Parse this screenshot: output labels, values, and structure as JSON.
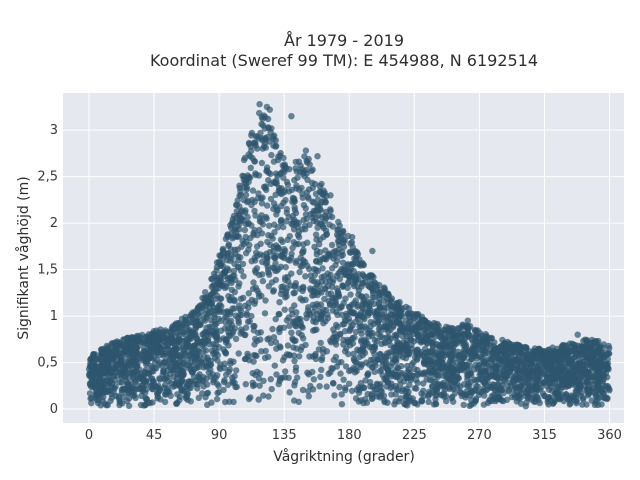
{
  "chart_data": {
    "type": "scatter",
    "title_line1": "År 1979 - 2019",
    "title_line2": "Koordinat (Sweref 99 TM): E 454988, N 6192514",
    "xlabel": "Vågriktning (grader)",
    "ylabel": "Signifikant våghöjd (m)",
    "xlim": [
      -18,
      370
    ],
    "ylim": [
      -0.15,
      3.4
    ],
    "x_ticks": [
      0,
      45,
      90,
      135,
      180,
      225,
      270,
      315,
      360
    ],
    "x_tick_labels": [
      "0",
      "45",
      "90",
      "135",
      "180",
      "225",
      "270",
      "315",
      "360"
    ],
    "y_ticks": [
      0,
      0.5,
      1,
      1.5,
      2,
      2.5,
      3
    ],
    "y_tick_labels": [
      "0",
      "0,5",
      "1",
      "1,5",
      "2",
      "2,5",
      "3"
    ],
    "grid": true,
    "plot_background": "#e5e8ef",
    "marker_color": "#2e566e",
    "series": [
      {
        "x": [
          0,
          5,
          10,
          15,
          20,
          25,
          30,
          35,
          40,
          45,
          50,
          55,
          60,
          65,
          70,
          75,
          80,
          85,
          90,
          95,
          100,
          105,
          110,
          115,
          120,
          125,
          130,
          135,
          140,
          145,
          150,
          155,
          160,
          165,
          170,
          175,
          180,
          185,
          190,
          195,
          200,
          205,
          210,
          215,
          220,
          225,
          230,
          235,
          240,
          245,
          250,
          255,
          260,
          265,
          270,
          275,
          280,
          285,
          290,
          295,
          300,
          305,
          310,
          315,
          320,
          325,
          330,
          335,
          340,
          345,
          350,
          355,
          360
        ],
        "y_max": [
          0.6,
          0.62,
          0.66,
          0.7,
          0.74,
          0.77,
          0.8,
          0.8,
          0.82,
          0.85,
          0.86,
          0.88,
          0.92,
          0.98,
          1.02,
          1.1,
          1.25,
          1.45,
          1.65,
          1.85,
          2.1,
          2.5,
          2.9,
          3.28,
          3.2,
          3.1,
          2.9,
          2.75,
          2.6,
          2.7,
          2.8,
          2.6,
          2.45,
          2.3,
          2.1,
          2.0,
          1.85,
          1.7,
          1.55,
          1.45,
          1.38,
          1.3,
          1.2,
          1.15,
          1.1,
          1.05,
          1.0,
          0.97,
          0.92,
          0.9,
          0.88,
          0.9,
          0.92,
          0.88,
          0.86,
          0.8,
          0.77,
          0.75,
          0.72,
          0.7,
          0.68,
          0.66,
          0.65,
          0.65,
          0.66,
          0.68,
          0.7,
          0.72,
          0.74,
          0.76,
          0.74,
          0.72,
          0.68
        ],
        "y_min": 0.03
      }
    ],
    "outliers": [
      {
        "x": 118,
        "y": 3.28
      },
      {
        "x": 123,
        "y": 3.25
      },
      {
        "x": 125,
        "y": 3.22
      },
      {
        "x": 140,
        "y": 3.15
      },
      {
        "x": 150,
        "y": 2.78
      },
      {
        "x": 158,
        "y": 2.72
      },
      {
        "x": 146,
        "y": 2.55
      },
      {
        "x": 167,
        "y": 2.3
      },
      {
        "x": 182,
        "y": 1.85
      },
      {
        "x": 196,
        "y": 1.7
      },
      {
        "x": 262,
        "y": 0.95
      },
      {
        "x": 338,
        "y": 0.8
      }
    ]
  }
}
